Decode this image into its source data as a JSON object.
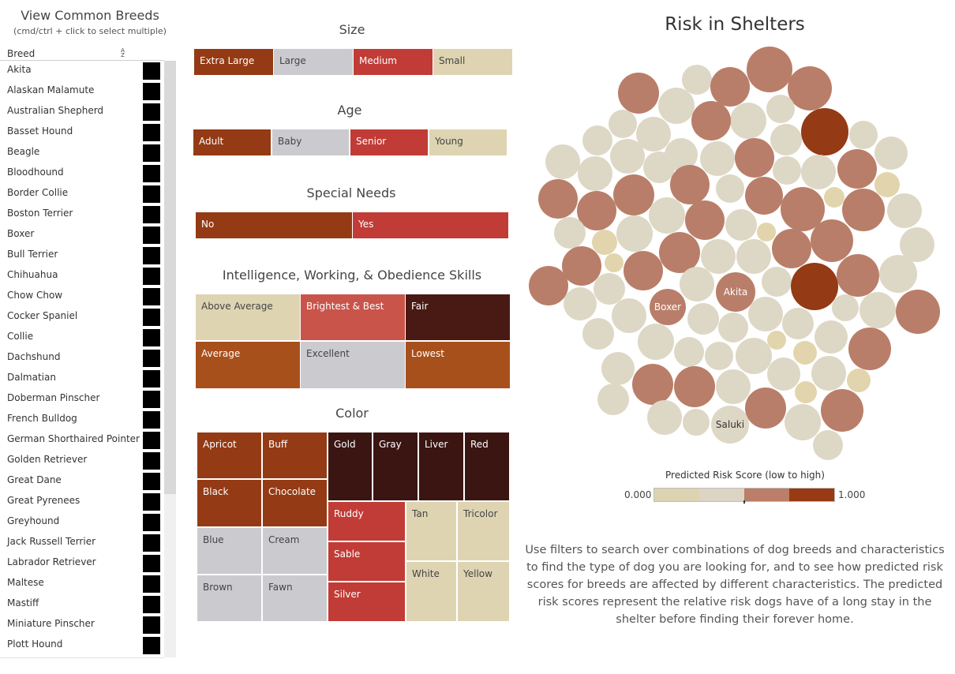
{
  "breed_filter": {
    "title": "View Common Breeds",
    "subtitle": "(cmd/ctrl +  click to select multiple)",
    "column_header": "Breed",
    "sort_icon": "sort-az-icon",
    "breeds": [
      "Akita",
      "Alaskan Malamute",
      "Australian Shepherd",
      "Basset Hound",
      "Beagle",
      "Bloodhound",
      "Border Collie",
      "Boston Terrier",
      "Boxer",
      "Bull Terrier",
      "Chihuahua",
      "Chow Chow",
      "Cocker Spaniel",
      "Collie",
      "Dachshund",
      "Dalmatian",
      "Doberman Pinscher",
      "French Bulldog",
      "German Shorthaired Pointer",
      "Golden Retriever",
      "Great Dane",
      "Great Pyrenees",
      "Greyhound",
      "Jack Russell Terrier",
      "Labrador Retriever",
      "Maltese",
      "Mastiff",
      "Miniature Pinscher",
      "Plott Hound"
    ]
  },
  "filters": {
    "size": {
      "title": "Size",
      "items": [
        "Extra Large",
        "Large",
        "Medium",
        "Small"
      ]
    },
    "age": {
      "title": "Age",
      "items": [
        "Adult",
        "Baby",
        "Senior",
        "Young"
      ]
    },
    "special_needs": {
      "title": "Special Needs",
      "items": [
        "No",
        "Yes"
      ]
    },
    "skills": {
      "title": "Intelligence, Working, & Obedience Skills",
      "items": [
        "Above Average",
        "Brightest & Best",
        "Fair",
        "Average",
        "Excellent",
        "Lowest"
      ]
    },
    "color": {
      "title": "Color",
      "items": [
        "Apricot",
        "Buff",
        "Black",
        "Chocolate",
        "Blue",
        "Cream",
        "Brown",
        "Fawn",
        "Gold",
        "Gray",
        "Liver",
        "Red",
        "Ruddy",
        "Sable",
        "Silver",
        "Tan",
        "Tricolor",
        "White",
        "Yellow"
      ]
    }
  },
  "colors": {
    "dark_rust": "#943a14",
    "rust": "#a8501c",
    "red": "#c13c36",
    "coral": "#c9544a",
    "maroon": "#491a13",
    "darkest": "#3b1512",
    "grey": "#cbcace",
    "beige": "#ded4b2",
    "bubble_light": "#ddd7c5",
    "bubble_mid": "#b97e69",
    "bubble_tan": "#e2d5ad"
  },
  "chart": {
    "title": "Risk in Shelters",
    "labels": [
      "Akita",
      "Boxer",
      "Saluki"
    ],
    "legend_title": "Predicted Risk Score (low to high)",
    "legend_min": "0.000",
    "legend_max": "1.000",
    "legend_colors": [
      "#ddd3b3",
      "#dcd5c3",
      "#bb7e68",
      "#983a14"
    ]
  },
  "description": "Use filters to search over combinations of dog breeds and characteristics to find the type of dog you are looking for, and to see how predicted risk scores for breeds are affected by different characteristics. The predicted risk scores represent the relative risk dogs have of a long stay in the shelter before finding their forever home."
}
